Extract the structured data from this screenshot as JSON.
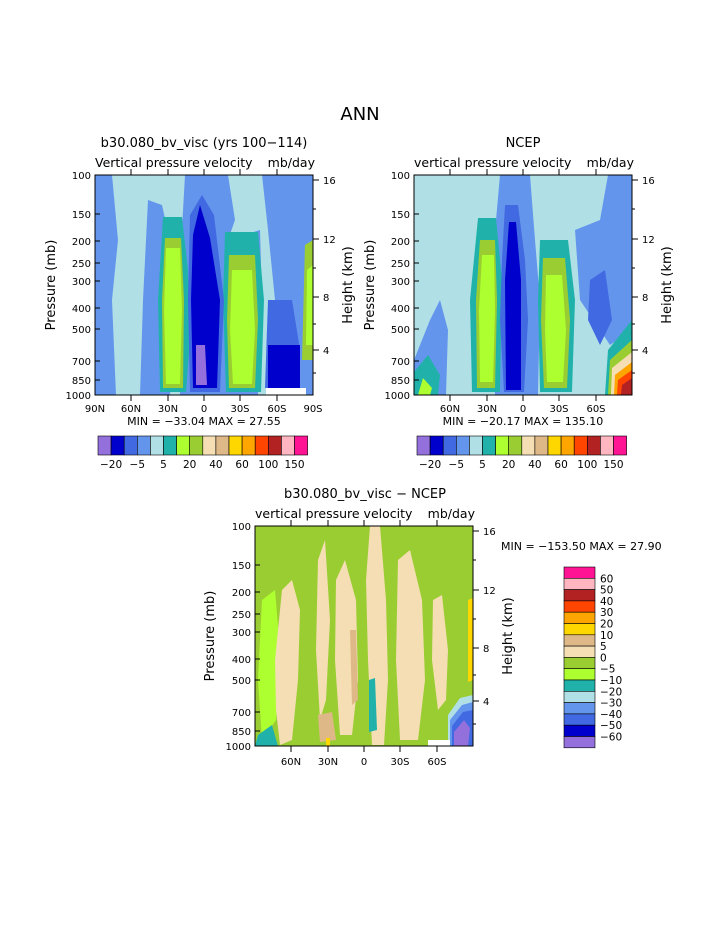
{
  "page_title": "ANN",
  "chart_data": [
    {
      "type": "contour",
      "id": "model",
      "title": "b30.080_bv_visc (yrs 100−114)",
      "subtitle_left": "Vertical pressure velocity",
      "subtitle_right": "mb/day",
      "stats": "MIN = −33.04   MAX =  27.55",
      "ylabel": "Pressure (mb)",
      "ylabel_right": "Height (km)",
      "yticks": [
        "100",
        "150",
        "200",
        "250",
        "300",
        "400",
        "500",
        "700",
        "850",
        "1000"
      ],
      "yticks_right": [
        "16",
        "12",
        "8",
        "4"
      ],
      "xticks": [
        "90N",
        "60N",
        "30N",
        "0",
        "30S",
        "60S",
        "90S"
      ],
      "ylim": [
        1000,
        100
      ],
      "xlim": [
        90,
        -90
      ],
      "levels": [
        -20,
        -15,
        -10,
        -5,
        0,
        5,
        10,
        20,
        30,
        40,
        50,
        60,
        80,
        100,
        120,
        150
      ],
      "colorbar_labels": [
        "−20",
        "−5",
        "5",
        "20",
        "40",
        "60",
        "100",
        "150"
      ],
      "features": [
        {
          "name": "northern-descent",
          "sign": "positive",
          "lat_range": [
            40,
            20
          ],
          "peak": 27
        },
        {
          "name": "itcz-ascent",
          "sign": "negative",
          "lat_range": [
            12,
            -5
          ],
          "peak": -33
        },
        {
          "name": "southern-descent",
          "sign": "positive",
          "lat_range": [
            -18,
            -38
          ],
          "peak": 25
        }
      ]
    },
    {
      "type": "contour",
      "id": "obs",
      "title": "NCEP",
      "subtitle_left": "vertical pressure velocity",
      "subtitle_right": "mb/day",
      "stats": "MIN = −20.17   MAX = 135.10",
      "ylabel": "Pressure (mb)",
      "ylabel_right": "Height (km)",
      "yticks": [
        "100",
        "150",
        "200",
        "250",
        "300",
        "400",
        "500",
        "700",
        "850",
        "1000"
      ],
      "yticks_right": [
        "16",
        "12",
        "8",
        "4"
      ],
      "xticks": [
        "60N",
        "30N",
        "0",
        "30S",
        "60S"
      ],
      "ylim": [
        1000,
        100
      ],
      "colorbar_labels": [
        "−20",
        "−5",
        "5",
        "20",
        "40",
        "60",
        "100",
        "150"
      ],
      "features": [
        {
          "name": "northern-descent",
          "sign": "positive",
          "lat_range": [
            35,
            20
          ],
          "peak": 20
        },
        {
          "name": "itcz-ascent",
          "sign": "negative",
          "lat_range": [
            10,
            -5
          ],
          "peak": -20
        },
        {
          "name": "southern-descent",
          "sign": "positive",
          "lat_range": [
            -18,
            -35
          ],
          "peak": 20
        },
        {
          "name": "antarctic-surface-max",
          "sign": "positive",
          "lat_range": [
            -70,
            -85
          ],
          "peak": 135
        }
      ]
    },
    {
      "type": "contour",
      "id": "diff",
      "title": "b30.080_bv_visc − NCEP",
      "subtitle_left": "vertical pressure velocity",
      "subtitle_right": "mb/day",
      "stats": "MIN = −153.50   MAX =  27.90",
      "ylabel": "Pressure (mb)",
      "ylabel_right": "Height (km)",
      "yticks": [
        "100",
        "150",
        "200",
        "250",
        "300",
        "400",
        "500",
        "700",
        "850",
        "1000"
      ],
      "yticks_right": [
        "16",
        "12",
        "8",
        "4"
      ],
      "xticks": [
        "60N",
        "30N",
        "0",
        "30S",
        "60S"
      ],
      "ylim": [
        1000,
        100
      ],
      "levels": [
        -60,
        -50,
        -40,
        -30,
        -20,
        -10,
        -5,
        0,
        5,
        10,
        20,
        30,
        40,
        50,
        60
      ],
      "colorbar_labels": [
        "60",
        "50",
        "40",
        "30",
        "20",
        "10",
        "5",
        "0",
        "−5",
        "−10",
        "−20",
        "−30",
        "−40",
        "−50",
        "−60"
      ]
    }
  ],
  "colors": {
    "palette": [
      "#9370db",
      "#0000cd",
      "#4169e1",
      "#6495ed",
      "#b0e0e6",
      "#20b2aa",
      "#adff2f",
      "#9acd32",
      "#f5deb3",
      "#deb887",
      "#ffd700",
      "#ffa500",
      "#ff4500",
      "#b22222",
      "#ffb6c1",
      "#ff1493"
    ]
  }
}
